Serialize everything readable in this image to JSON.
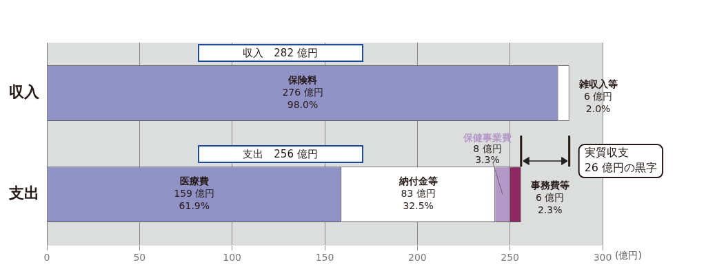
{
  "chart_data": {
    "type": "bar",
    "orientation": "horizontal",
    "stacked": true,
    "categories": [
      "収入",
      "支出"
    ],
    "series": [
      {
        "name": "保険料",
        "color": "#9192c6",
        "values": [
          276,
          null
        ],
        "value_labels": [
          "276 億円\n98.0%",
          null
        ]
      },
      {
        "name": "雑収入等",
        "color": "#ffffff",
        "values": [
          6,
          null
        ],
        "value_labels": [
          "6 億円\n2.0%",
          null
        ]
      },
      {
        "name": "医療費",
        "color": "#9192c6",
        "values": [
          null,
          159
        ],
        "value_labels": [
          null,
          "159 億円\n61.9%"
        ]
      },
      {
        "name": "納付金等",
        "color": "#ffffff",
        "values": [
          null,
          83
        ],
        "value_labels": [
          null,
          "83 億円\n32.5%"
        ]
      },
      {
        "name": "保健事業費",
        "color": "#b498c8",
        "values": [
          null,
          8
        ],
        "value_labels": [
          null,
          "8 億円\n3.3%"
        ]
      },
      {
        "name": "事務費等",
        "color": "#8e2860",
        "values": [
          null,
          6
        ],
        "value_labels": [
          null,
          "6 億円\n2.3%"
        ]
      }
    ],
    "totals": [
      "収入　282 億円",
      "支出　256 億円"
    ],
    "xlabel": "(億円)",
    "xlim": [
      0,
      300
    ],
    "xticks": [
      0,
      50,
      100,
      150,
      200,
      250,
      300
    ],
    "ref_lines": [
      {
        "axis": "x",
        "value": 256
      },
      {
        "axis": "x",
        "value": 282
      }
    ],
    "annotations": [
      "実質収支\n26 億円の黒字"
    ],
    "grid": "x",
    "legend": false
  }
}
